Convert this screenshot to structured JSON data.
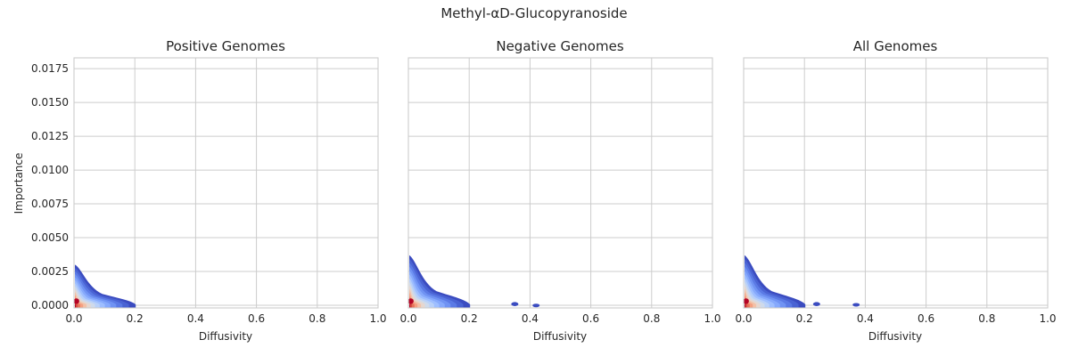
{
  "suptitle": "Methyl-αD-Glucopyranoside",
  "chart_data": [
    {
      "type": "contour",
      "title": "Positive Genomes",
      "xlabel": "Diffusivity",
      "ylabel": "Importance",
      "xlim": [
        0,
        1.0
      ],
      "ylim": [
        -0.0002,
        0.0183
      ],
      "x_ticks": [
        "0.0",
        "0.2",
        "0.4",
        "0.6",
        "0.8",
        "1.0"
      ],
      "y_ticks": [
        "0.0000",
        "0.0025",
        "0.0050",
        "0.0075",
        "0.0100",
        "0.0125",
        "0.0150",
        "0.0175"
      ],
      "grid": true,
      "colormap": [
        "#3b4cc0",
        "#4a63d3",
        "#5b7ae5",
        "#7093f3",
        "#86a9fc",
        "#9ebeff",
        "#b8d0f9",
        "#cfdaea",
        "#e6d7cf",
        "#f3c1a7",
        "#f5a081",
        "#e7745b",
        "#d44e41",
        "#b40426"
      ],
      "density_extent": {
        "x": [
          [
            0.0,
            0.003
          ],
          [
            0.1,
            0.0008
          ],
          [
            0.2,
            0.0003
          ]
        ]
      },
      "peak": {
        "x": 0.005,
        "y": 0.0003
      }
    },
    {
      "type": "contour",
      "title": "Negative Genomes",
      "xlabel": "Diffusivity",
      "ylabel": "",
      "xlim": [
        0,
        1.0
      ],
      "ylim": [
        -0.0002,
        0.0183
      ],
      "x_ticks": [
        "0.0",
        "0.2",
        "0.4",
        "0.6",
        "0.8",
        "1.0"
      ],
      "y_ticks": [],
      "grid": true,
      "colormap": [
        "#3b4cc0",
        "#4a63d3",
        "#5b7ae5",
        "#7093f3",
        "#86a9fc",
        "#9ebeff",
        "#b8d0f9",
        "#cfdaea",
        "#e6d7cf",
        "#f3c1a7",
        "#f5a081",
        "#e7745b",
        "#d44e41",
        "#b40426"
      ],
      "density_extent": {
        "x": [
          [
            0.0,
            0.0037
          ],
          [
            0.1,
            0.0008
          ],
          [
            0.2,
            0.0004
          ],
          [
            0.35,
            0.0003
          ],
          [
            0.42,
            0.0001
          ]
        ]
      },
      "peak": {
        "x": 0.005,
        "y": 0.0003
      }
    },
    {
      "type": "contour",
      "title": "All Genomes",
      "xlabel": "Diffusivity",
      "ylabel": "",
      "xlim": [
        0,
        1.0
      ],
      "ylim": [
        -0.0002,
        0.0183
      ],
      "x_ticks": [
        "0.0",
        "0.2",
        "0.4",
        "0.6",
        "0.8",
        "1.0"
      ],
      "y_ticks": [],
      "grid": true,
      "colormap": [
        "#3b4cc0",
        "#4a63d3",
        "#5b7ae5",
        "#7093f3",
        "#86a9fc",
        "#9ebeff",
        "#b8d0f9",
        "#cfdaea",
        "#e6d7cf",
        "#f3c1a7",
        "#f5a081",
        "#e7745b",
        "#d44e41",
        "#b40426"
      ],
      "density_extent": {
        "x": [
          [
            0.0,
            0.0037
          ],
          [
            0.1,
            0.0008
          ],
          [
            0.2,
            0.0004
          ],
          [
            0.24,
            0.0003
          ],
          [
            0.37,
            0.0002
          ]
        ]
      },
      "peak": {
        "x": 0.005,
        "y": 0.0003
      }
    }
  ]
}
